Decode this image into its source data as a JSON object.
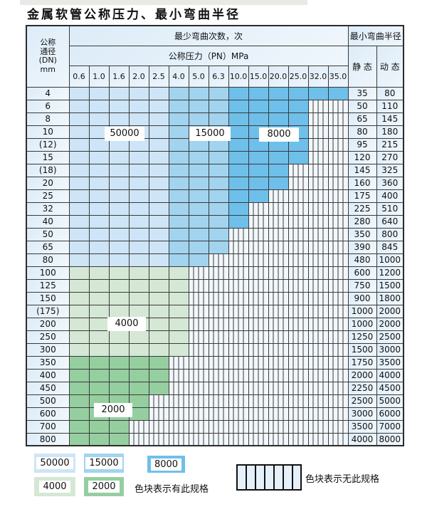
{
  "title": "金属软管公称压力、最小弯曲半径",
  "header": {
    "dn_lines": [
      "公称",
      "通径",
      "(DN)",
      "mm"
    ],
    "cycles_title": "最少弯曲次数，次",
    "pressure_title": "公称压力（PN）MPa",
    "radius_title": "最小弯曲半径",
    "static_label": "静 态",
    "dynamic_label": "动 态"
  },
  "columns": [
    "0.6",
    "1.0",
    "1.6",
    "2.0",
    "2.5",
    "4.0",
    "5.0",
    "6.3",
    "10.0",
    "15.0",
    "20.0",
    "25.0",
    "32.0",
    "35.0"
  ],
  "colors": {
    "c50000": "#cde5f6",
    "c15000": "#a2d3ef",
    "c8000": "#6ec0ea",
    "c4000": "#d5e8d5",
    "c2000": "#95cfa0",
    "header_bg": "#e7f1f9",
    "hatch_bg": "#f1f7fb",
    "grid": "#3a3a3a"
  },
  "blue_bands": {
    "b50000": [
      0,
      4
    ],
    "b15000": [
      5,
      7
    ],
    "b8000": [
      8,
      13
    ]
  },
  "rows": [
    {
      "dn": "4",
      "band": "blue",
      "colored": 14,
      "static": "35",
      "dynamic": "80"
    },
    {
      "dn": "6",
      "band": "blue",
      "colored": 12,
      "static": "50",
      "dynamic": "110"
    },
    {
      "dn": "8",
      "band": "blue",
      "colored": 12,
      "static": "65",
      "dynamic": "145"
    },
    {
      "dn": "10",
      "band": "blue",
      "colored": 12,
      "static": "80",
      "dynamic": "180"
    },
    {
      "dn": "(12)",
      "band": "blue",
      "colored": 12,
      "static": "95",
      "dynamic": "215"
    },
    {
      "dn": "15",
      "band": "blue",
      "colored": 12,
      "static": "120",
      "dynamic": "270"
    },
    {
      "dn": "(18)",
      "band": "blue",
      "colored": 11,
      "static": "145",
      "dynamic": "325"
    },
    {
      "dn": "20",
      "band": "blue",
      "colored": 11,
      "static": "160",
      "dynamic": "360"
    },
    {
      "dn": "25",
      "band": "blue",
      "colored": 10,
      "static": "175",
      "dynamic": "400"
    },
    {
      "dn": "32",
      "band": "blue",
      "colored": 9,
      "static": "225",
      "dynamic": "510"
    },
    {
      "dn": "40",
      "band": "blue",
      "colored": 9,
      "static": "280",
      "dynamic": "640"
    },
    {
      "dn": "50",
      "band": "blue",
      "colored": 8,
      "static": "350",
      "dynamic": "800"
    },
    {
      "dn": "65",
      "band": "blue",
      "colored": 8,
      "static": "390",
      "dynamic": "845"
    },
    {
      "dn": "80",
      "band": "blue",
      "colored": 7,
      "static": "480",
      "dynamic": "1000"
    },
    {
      "dn": "100",
      "band": "g4000",
      "colored": 6,
      "static": "600",
      "dynamic": "1200"
    },
    {
      "dn": "125",
      "band": "g4000",
      "colored": 6,
      "static": "750",
      "dynamic": "1500"
    },
    {
      "dn": "150",
      "band": "g4000",
      "colored": 6,
      "static": "900",
      "dynamic": "1800"
    },
    {
      "dn": "(175)",
      "band": "g4000",
      "colored": 6,
      "static": "1000",
      "dynamic": "2000"
    },
    {
      "dn": "200",
      "band": "g4000",
      "colored": 6,
      "static": "1000",
      "dynamic": "2000"
    },
    {
      "dn": "250",
      "band": "g4000",
      "colored": 6,
      "static": "1250",
      "dynamic": "2500"
    },
    {
      "dn": "300",
      "band": "g4000",
      "colored": 6,
      "static": "1500",
      "dynamic": "3000"
    },
    {
      "dn": "350",
      "band": "g2000",
      "colored": 5,
      "static": "1750",
      "dynamic": "3500"
    },
    {
      "dn": "400",
      "band": "g2000",
      "colored": 5,
      "static": "2000",
      "dynamic": "4000"
    },
    {
      "dn": "450",
      "band": "g2000",
      "colored": 5,
      "static": "2250",
      "dynamic": "4500"
    },
    {
      "dn": "500",
      "band": "g2000",
      "colored": 4,
      "static": "2500",
      "dynamic": "5000"
    },
    {
      "dn": "600",
      "band": "g2000",
      "colored": 4,
      "static": "3000",
      "dynamic": "6000"
    },
    {
      "dn": "700",
      "band": "g2000",
      "colored": 3,
      "static": "3500",
      "dynamic": "7000"
    },
    {
      "dn": "800",
      "band": "g2000",
      "colored": 3,
      "static": "4000",
      "dynamic": "8000"
    }
  ],
  "band_labels": {
    "l50000": "50000",
    "l15000": "15000",
    "l8000": "8000",
    "l4000": "4000",
    "l2000": "2000"
  },
  "legend": {
    "swatches": [
      {
        "label": "50000",
        "color_key": "c50000"
      },
      {
        "label": "15000",
        "color_key": "c15000"
      },
      {
        "label": "8000",
        "color_key": "c8000"
      },
      {
        "label": "4000",
        "color_key": "c4000"
      },
      {
        "label": "2000",
        "color_key": "c2000"
      }
    ],
    "has_spec_text": "色块表示有此规格",
    "no_spec_text": "色块表示无此规格"
  }
}
